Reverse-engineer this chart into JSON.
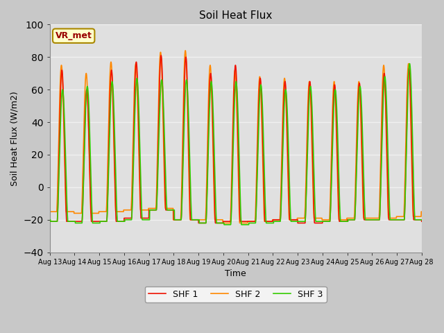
{
  "title": "Soil Heat Flux",
  "xlabel": "Time",
  "ylabel": "Soil Heat Flux (W/m2)",
  "ylim": [
    -40,
    100
  ],
  "yticks": [
    -40,
    -20,
    0,
    20,
    40,
    60,
    80,
    100
  ],
  "num_days": 15,
  "xtick_labels": [
    "Aug 13",
    "Aug 14",
    "Aug 15",
    "Aug 16",
    "Aug 17",
    "Aug 18",
    "Aug 19",
    "Aug 20",
    "Aug 21",
    "Aug 22",
    "Aug 23",
    "Aug 24",
    "Aug 25",
    "Aug 26",
    "Aug 27",
    "Aug 28"
  ],
  "fig_bg_color": "#c8c8c8",
  "plot_bg_color": "#e0e0e0",
  "line_colors": [
    "#ee1100",
    "#ff8800",
    "#33cc00"
  ],
  "line_labels": [
    "SHF 1",
    "SHF 2",
    "SHF 3"
  ],
  "legend_label": "VR_met",
  "legend_bg": "#ffffcc",
  "legend_border": "#aa8800",
  "grid_color": "#f0f0f0",
  "peaks1": [
    72,
    60,
    72,
    77,
    81,
    80,
    70,
    75,
    67,
    65,
    65,
    63,
    64,
    70,
    73
  ],
  "troughs1": [
    -21,
    -21,
    -21,
    -19,
    -14,
    -20,
    -22,
    -21,
    -21,
    -20,
    -22,
    -21,
    -20,
    -20,
    -20
  ],
  "peaks2": [
    75,
    70,
    77,
    76,
    83,
    84,
    75,
    72,
    68,
    67,
    65,
    65,
    65,
    75,
    76
  ],
  "troughs2": [
    -15,
    -16,
    -15,
    -14,
    -13,
    -20,
    -20,
    -22,
    -21,
    -20,
    -19,
    -20,
    -19,
    -19,
    -18
  ],
  "peaks3": [
    60,
    62,
    65,
    67,
    66,
    66,
    65,
    65,
    63,
    60,
    62,
    60,
    62,
    68,
    76
  ],
  "troughs3": [
    -21,
    -22,
    -21,
    -20,
    -14,
    -20,
    -22,
    -23,
    -22,
    -21,
    -21,
    -21,
    -20,
    -20,
    -20
  ],
  "day_start": 0.3,
  "day_end": 0.68,
  "linewidth": 1.2
}
